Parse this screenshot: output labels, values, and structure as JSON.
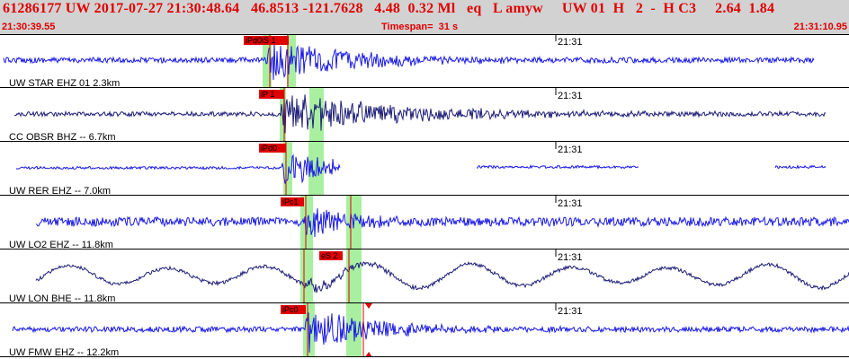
{
  "header": {
    "event_info": "61286177 UW 2017-07-27 21:30:48.64   46.8513 -121.7628   4.48  0.32 Ml   eq   L amyw     UW 01  H   2  -  H C3     2.64  1.84",
    "start_time": "21:30:39.55",
    "timespan": "Timespan=  31 s",
    "end_time": "21:31:10.95"
  },
  "colors": {
    "header_bg": "#d2d2d2",
    "header_text": "#e00000",
    "trace_blue": "#1a1ae6",
    "trace_dark": "#1e1e78",
    "pick_red": "#e00000",
    "window_green": "#a8f0a0",
    "divider": "#000000"
  },
  "time_tick_label": "21:31",
  "traces": [
    {
      "label": "UW STAR EHZ 01 2.3km",
      "picks": [
        {
          "text": "iPd0iS 1"
        }
      ]
    },
    {
      "label": "CC OBSR BHZ -- 6.7km",
      "picks": [
        {
          "text": "iP 1"
        }
      ]
    },
    {
      "label": "UW RER EHZ -- 7.0km",
      "picks": [
        {
          "text": "iPd0"
        }
      ]
    },
    {
      "label": "UW LO2 EHZ -- 11.8km",
      "picks": [
        {
          "text": "iPc1"
        }
      ]
    },
    {
      "label": "UW LON BHE -- 11.8km",
      "picks": [
        {
          "text": "eS 2"
        }
      ]
    },
    {
      "label": "UW FMW EHZ -- 12.2km",
      "picks": [
        {
          "text": "iPc0"
        }
      ]
    }
  ]
}
